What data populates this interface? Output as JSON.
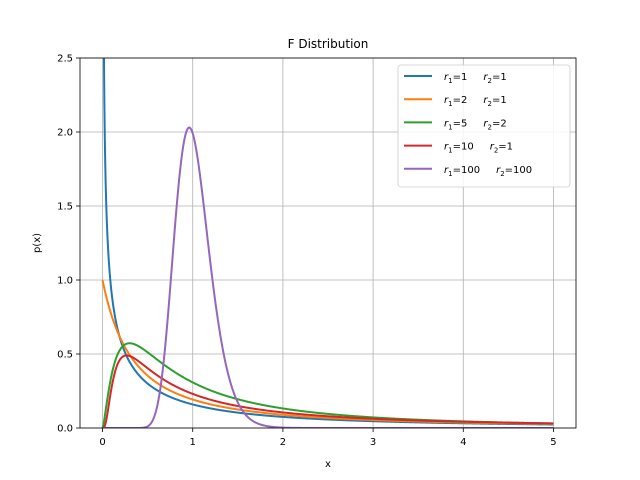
{
  "chart_data": {
    "type": "line",
    "title": "F Distribution",
    "xlabel": "x",
    "ylabel": "p(x)",
    "xlim": [
      -0.25,
      5.25
    ],
    "ylim": [
      0,
      2.5
    ],
    "xticks": [
      0,
      1,
      2,
      3,
      4,
      5
    ],
    "yticks": [
      0.0,
      0.5,
      1.0,
      1.5,
      2.0,
      2.5
    ],
    "xtick_labels": [
      "0",
      "1",
      "2",
      "3",
      "4",
      "5"
    ],
    "ytick_labels": [
      "0.0",
      "0.5",
      "1.0",
      "1.5",
      "2.0",
      "2.5"
    ],
    "grid": true,
    "legend_position": "top-right",
    "x_range": [
      0,
      5
    ],
    "series": [
      {
        "r1": "1",
        "r2": "1",
        "d1": 1,
        "d2": 1,
        "color": "#1f77b4"
      },
      {
        "r1": "2",
        "r2": "1",
        "d1": 2,
        "d2": 1,
        "color": "#ff7f0e"
      },
      {
        "r1": "5",
        "r2": "2",
        "d1": 5,
        "d2": 2,
        "color": "#2ca02c"
      },
      {
        "r1": "10",
        "r2": "1",
        "d1": 10,
        "d2": 1,
        "color": "#d62728"
      },
      {
        "r1": "100",
        "r2": "100",
        "d1": 100,
        "d2": 100,
        "color": "#9467bd"
      }
    ]
  }
}
